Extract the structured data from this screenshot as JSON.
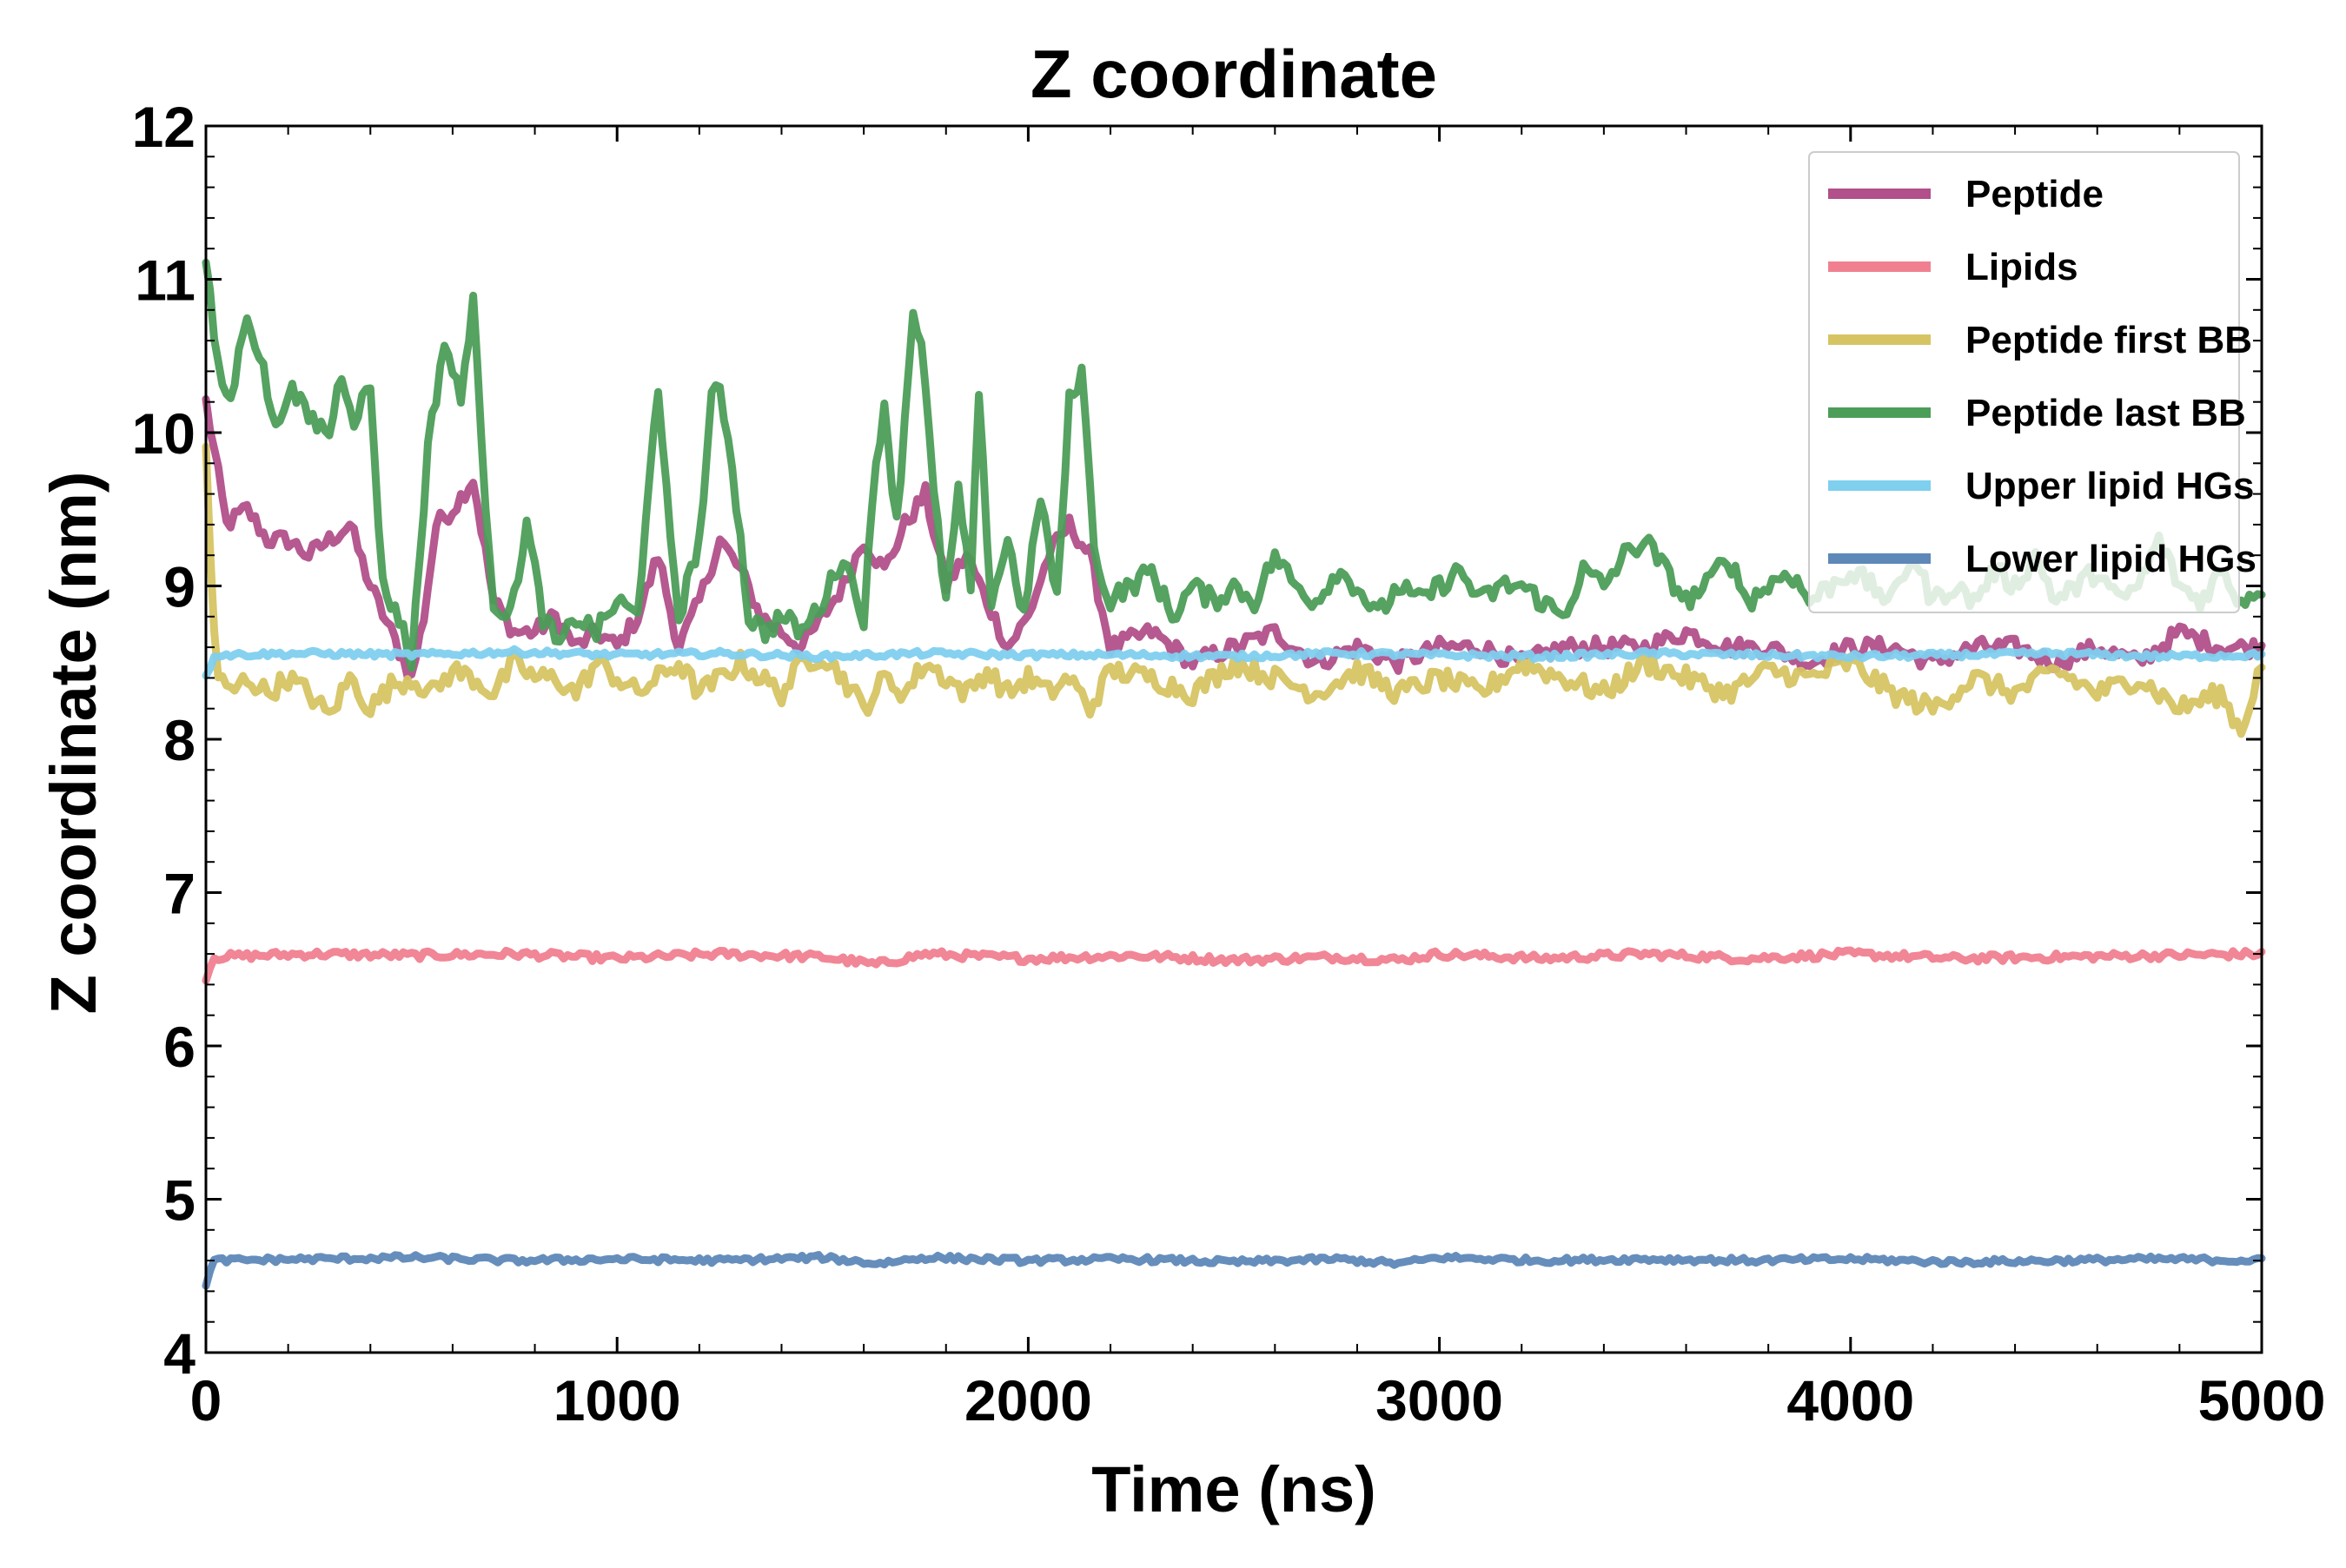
{
  "chart_data": {
    "type": "line",
    "title": "Z coordinate",
    "xlabel": "Time (ns)",
    "ylabel": "Z coordinate (nm)",
    "xlim": [
      0,
      5000
    ],
    "ylim": [
      4,
      12
    ],
    "xticks": [
      0,
      1000,
      2000,
      3000,
      4000,
      5000
    ],
    "yticks": [
      4,
      5,
      6,
      7,
      8,
      9,
      10,
      11,
      12
    ],
    "grid": false,
    "legend": "top-right",
    "series": [
      {
        "name": "Peptide",
        "color": "#b1508a",
        "x": [
          0,
          50,
          100,
          150,
          200,
          250,
          300,
          350,
          400,
          450,
          500,
          530,
          560,
          600,
          650,
          700,
          750,
          800,
          850,
          900,
          950,
          1000,
          1050,
          1100,
          1150,
          1200,
          1250,
          1300,
          1350,
          1400,
          1450,
          1500,
          1550,
          1600,
          1650,
          1700,
          1750,
          1800,
          1850,
          1900,
          1950,
          2000,
          2050,
          2100,
          2150,
          2200,
          2300,
          2400,
          2500,
          2600,
          2700,
          2800,
          2900,
          3000,
          3100,
          3200,
          3300,
          3400,
          3500,
          3600,
          3700,
          3800,
          3900,
          4000,
          4100,
          4200,
          4300,
          4400,
          4500,
          4600,
          4700,
          4800,
          4900,
          5000
        ],
        "y": [
          10.2,
          9.4,
          9.5,
          9.3,
          9.3,
          9.2,
          9.3,
          9.4,
          9.0,
          8.7,
          8.4,
          8.8,
          9.4,
          9.5,
          9.7,
          8.9,
          8.7,
          8.7,
          8.8,
          8.6,
          8.7,
          8.6,
          8.8,
          9.2,
          8.6,
          8.9,
          9.3,
          9.1,
          8.8,
          8.7,
          8.6,
          8.8,
          9.0,
          9.3,
          9.1,
          9.4,
          9.6,
          9.0,
          9.2,
          8.9,
          8.6,
          8.8,
          9.2,
          9.4,
          9.2,
          8.6,
          8.7,
          8.5,
          8.6,
          8.7,
          8.5,
          8.6,
          8.5,
          8.6,
          8.6,
          8.5,
          8.6,
          8.6,
          8.6,
          8.7,
          8.6,
          8.6,
          8.5,
          8.6,
          8.6,
          8.5,
          8.6,
          8.6,
          8.5,
          8.6,
          8.5,
          8.7,
          8.6,
          8.6
        ]
      },
      {
        "name": "Lipids",
        "color": "#f08090",
        "x": [
          0,
          20,
          250,
          500,
          750,
          1000,
          1250,
          1500,
          1630,
          1750,
          2000,
          2250,
          2500,
          2750,
          2900,
          3000,
          3250,
          3500,
          3750,
          4000,
          4250,
          4500,
          4750,
          5000
        ],
        "y": [
          6.45,
          6.58,
          6.6,
          6.59,
          6.6,
          6.57,
          6.6,
          6.58,
          6.53,
          6.6,
          6.57,
          6.59,
          6.56,
          6.58,
          6.56,
          6.6,
          6.57,
          6.6,
          6.57,
          6.6,
          6.57,
          6.58,
          6.59,
          6.6
        ]
      },
      {
        "name": "Peptide first BB",
        "color": "#d6c463",
        "x": [
          0,
          15,
          30,
          60,
          100,
          150,
          200,
          250,
          300,
          350,
          400,
          450,
          500,
          550,
          600,
          650,
          700,
          750,
          800,
          850,
          900,
          950,
          1000,
          1050,
          1100,
          1150,
          1200,
          1250,
          1300,
          1350,
          1400,
          1450,
          1500,
          1550,
          1600,
          1650,
          1700,
          1750,
          1800,
          1850,
          1900,
          1950,
          2000,
          2050,
          2100,
          2150,
          2200,
          2300,
          2400,
          2500,
          2600,
          2700,
          2800,
          2900,
          3000,
          3100,
          3200,
          3300,
          3400,
          3500,
          3600,
          3700,
          3800,
          3900,
          4000,
          4100,
          4200,
          4300,
          4400,
          4500,
          4600,
          4700,
          4800,
          4900,
          4950,
          5000
        ],
        "y": [
          9.9,
          8.9,
          8.4,
          8.3,
          8.4,
          8.3,
          8.4,
          8.3,
          8.15,
          8.4,
          8.2,
          8.35,
          8.4,
          8.3,
          8.45,
          8.4,
          8.3,
          8.5,
          8.4,
          8.4,
          8.3,
          8.5,
          8.4,
          8.3,
          8.4,
          8.5,
          8.3,
          8.4,
          8.5,
          8.4,
          8.3,
          8.5,
          8.55,
          8.4,
          8.2,
          8.4,
          8.3,
          8.5,
          8.4,
          8.3,
          8.45,
          8.3,
          8.4,
          8.3,
          8.4,
          8.2,
          8.45,
          8.4,
          8.3,
          8.5,
          8.4,
          8.3,
          8.45,
          8.3,
          8.4,
          8.3,
          8.5,
          8.4,
          8.3,
          8.5,
          8.4,
          8.3,
          8.45,
          8.4,
          8.5,
          8.3,
          8.2,
          8.4,
          8.3,
          8.45,
          8.3,
          8.4,
          8.2,
          8.3,
          8.05,
          8.5
        ]
      },
      {
        "name": "Peptide last BB",
        "color": "#4c9d58",
        "x": [
          0,
          30,
          60,
          100,
          140,
          170,
          200,
          250,
          300,
          330,
          360,
          400,
          430,
          470,
          500,
          540,
          580,
          620,
          650,
          670,
          700,
          740,
          780,
          820,
          860,
          900,
          950,
          1000,
          1050,
          1080,
          1100,
          1120,
          1150,
          1200,
          1230,
          1250,
          1280,
          1320,
          1360,
          1400,
          1450,
          1500,
          1550,
          1600,
          1630,
          1650,
          1680,
          1700,
          1720,
          1740,
          1770,
          1800,
          1830,
          1860,
          1880,
          1910,
          1950,
          1990,
          2030,
          2070,
          2100,
          2130,
          2160,
          2190,
          2250,
          2300,
          2350,
          2400,
          2450,
          2500,
          2550,
          2600,
          2650,
          2700,
          2750,
          2800,
          2850,
          2900,
          2950,
          3000,
          3050,
          3100,
          3150,
          3200,
          3250,
          3300,
          3350,
          3400,
          3450,
          3500,
          3550,
          3600,
          3650,
          3700,
          3750,
          3800,
          3850,
          3900,
          3950,
          4000,
          4050,
          4100,
          4150,
          4200,
          4250,
          4300,
          4350,
          4400,
          4450,
          4500,
          4550,
          4600,
          4650,
          4700,
          4750,
          4800,
          4850,
          4900,
          4950,
          5000
        ],
        "y": [
          11.1,
          10.4,
          10.2,
          10.8,
          10.4,
          10.0,
          10.3,
          10.1,
          10.0,
          10.4,
          10.1,
          10.3,
          9.0,
          8.8,
          8.5,
          9.9,
          10.6,
          10.2,
          10.9,
          9.9,
          8.9,
          8.8,
          9.4,
          8.8,
          8.6,
          8.8,
          8.7,
          8.9,
          8.8,
          9.8,
          10.2,
          9.6,
          8.8,
          9.3,
          10.2,
          10.3,
          9.8,
          8.8,
          8.7,
          8.8,
          8.7,
          8.9,
          9.2,
          8.8,
          9.8,
          10.2,
          9.4,
          10.1,
          10.8,
          10.6,
          9.6,
          8.9,
          9.6,
          9.0,
          10.2,
          8.9,
          9.3,
          8.8,
          9.6,
          8.9,
          10.2,
          10.4,
          9.3,
          8.9,
          9.0,
          9.1,
          8.8,
          9.0,
          8.9,
          9.0,
          8.9,
          9.2,
          9.0,
          8.9,
          9.1,
          9.0,
          8.8,
          9.0,
          8.9,
          9.0,
          9.1,
          8.9,
          9.0,
          9.0,
          8.9,
          8.8,
          9.1,
          9.0,
          9.2,
          9.3,
          9.1,
          8.9,
          9.0,
          9.2,
          8.9,
          9.0,
          9.1,
          8.9,
          9.0,
          9.1,
          9.0,
          8.9,
          9.2,
          8.9,
          9.0,
          8.9,
          9.1,
          9.0,
          9.2,
          8.9,
          9.0,
          9.1,
          8.9,
          9.0,
          9.3,
          9.0,
          8.9,
          9.1,
          8.9,
          9.0
        ]
      },
      {
        "name": "Upper lipid HGs",
        "color": "#7fcfef",
        "x": [
          0,
          20,
          250,
          500,
          750,
          1000,
          1250,
          1500,
          1750,
          2000,
          2250,
          2500,
          2750,
          3000,
          3250,
          3500,
          3750,
          4000,
          4250,
          4500,
          4750,
          5000
        ],
        "y": [
          8.4,
          8.55,
          8.56,
          8.55,
          8.57,
          8.55,
          8.56,
          8.54,
          8.56,
          8.55,
          8.55,
          8.54,
          8.56,
          8.55,
          8.54,
          8.56,
          8.55,
          8.54,
          8.55,
          8.56,
          8.54,
          8.55
        ]
      },
      {
        "name": "Lower lipid HGs",
        "color": "#5e88b8",
        "x": [
          0,
          20,
          250,
          500,
          750,
          1000,
          1250,
          1500,
          1630,
          1750,
          2000,
          2250,
          2500,
          2750,
          2900,
          3000,
          3250,
          3500,
          3750,
          4000,
          4250,
          4500,
          4750,
          5000
        ],
        "y": [
          4.45,
          4.6,
          4.61,
          4.62,
          4.6,
          4.61,
          4.6,
          4.62,
          4.58,
          4.62,
          4.6,
          4.61,
          4.59,
          4.61,
          4.58,
          4.62,
          4.6,
          4.61,
          4.6,
          4.61,
          4.59,
          4.6,
          4.61,
          4.6
        ]
      }
    ]
  }
}
